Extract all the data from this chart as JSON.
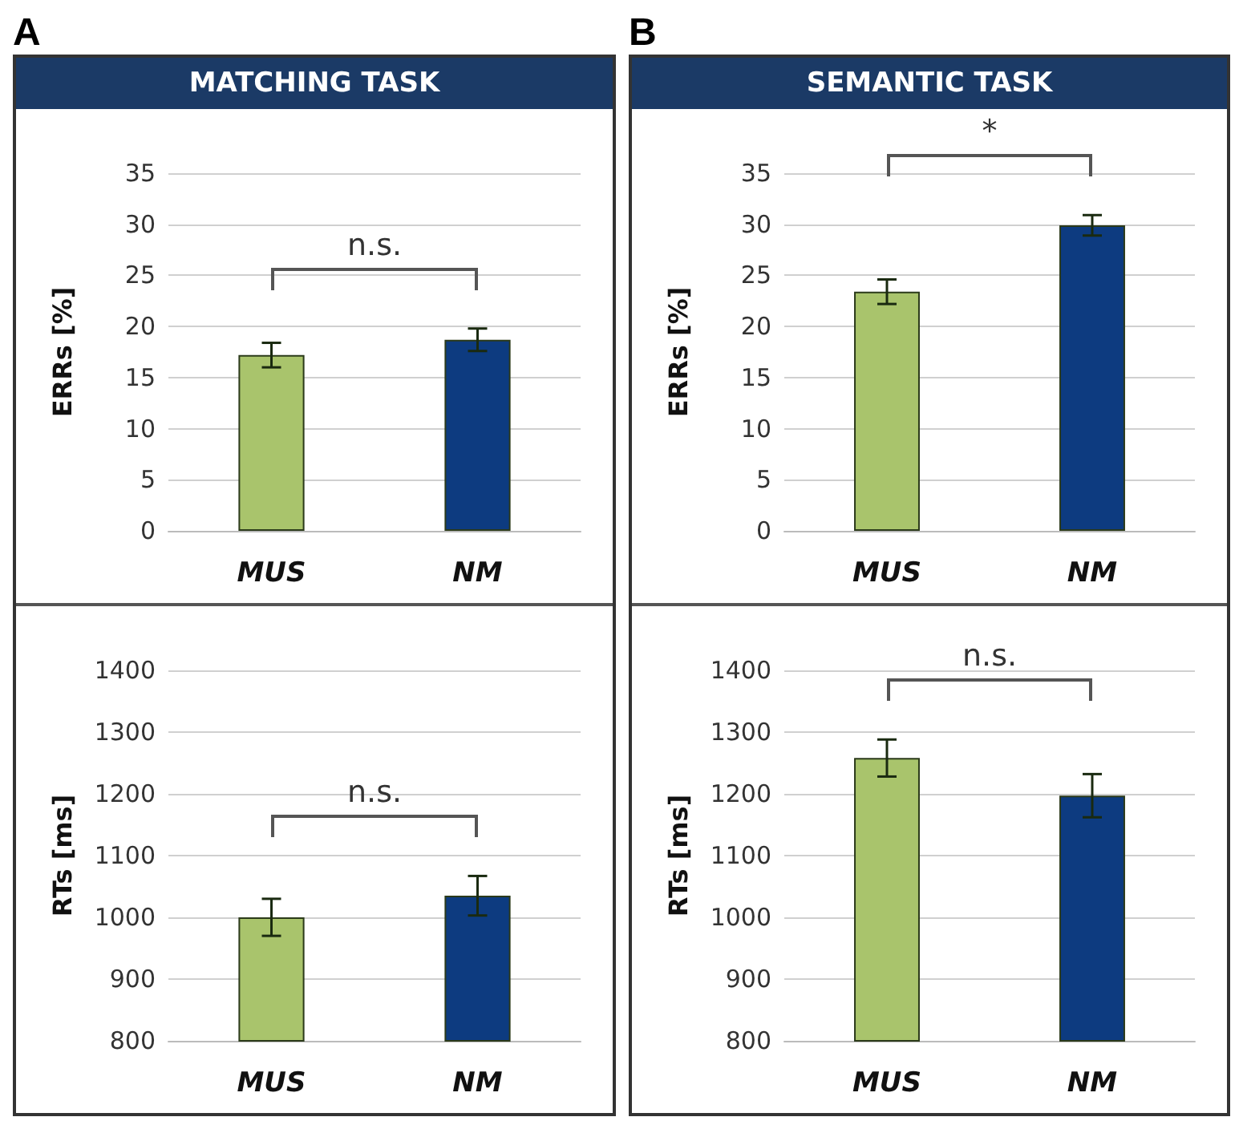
{
  "chart_data": [
    {
      "type": "bar",
      "title": "A",
      "subtitle": "MATCHING TASK",
      "ylabel": "ERRs [%]",
      "categories": [
        "MUS",
        "NM"
      ],
      "values": [
        17.2,
        18.7
      ],
      "errors": [
        1.2,
        1.1
      ],
      "colors": [
        "#a9c46c",
        "#0d3b80"
      ],
      "ylim": [
        0,
        35
      ],
      "yticks": [
        0,
        5,
        10,
        15,
        20,
        25,
        30,
        35
      ],
      "grid": "y",
      "annotations": [
        "n.s."
      ]
    },
    {
      "type": "bar",
      "title": "B",
      "subtitle": "SEMANTIC TASK",
      "ylabel": "ERRs [%]",
      "categories": [
        "MUS",
        "NM"
      ],
      "values": [
        23.4,
        29.9
      ],
      "errors": [
        1.2,
        1.0
      ],
      "colors": [
        "#a9c46c",
        "#0d3b80"
      ],
      "ylim": [
        0,
        35
      ],
      "yticks": [
        0,
        5,
        10,
        15,
        20,
        25,
        30,
        35
      ],
      "grid": "y",
      "annotations": [
        "*"
      ]
    },
    {
      "type": "bar",
      "ylabel": "RTs [ms]",
      "categories": [
        "MUS",
        "NM"
      ],
      "values": [
        1000,
        1035
      ],
      "errors": [
        30,
        32
      ],
      "colors": [
        "#a9c46c",
        "#0d3b80"
      ],
      "ylim": [
        800,
        1400
      ],
      "yticks": [
        800,
        900,
        1000,
        1100,
        1200,
        1300,
        1400
      ],
      "grid": "y",
      "annotations": [
        "n.s."
      ]
    },
    {
      "type": "bar",
      "ylabel": "RTs [ms]",
      "categories": [
        "MUS",
        "NM"
      ],
      "values": [
        1258,
        1197
      ],
      "errors": [
        30,
        35
      ],
      "colors": [
        "#a9c46c",
        "#0d3b80"
      ],
      "ylim": [
        800,
        1400
      ],
      "yticks": [
        800,
        900,
        1000,
        1100,
        1200,
        1300,
        1400
      ],
      "grid": "y",
      "annotations": [
        "n.s."
      ]
    }
  ]
}
